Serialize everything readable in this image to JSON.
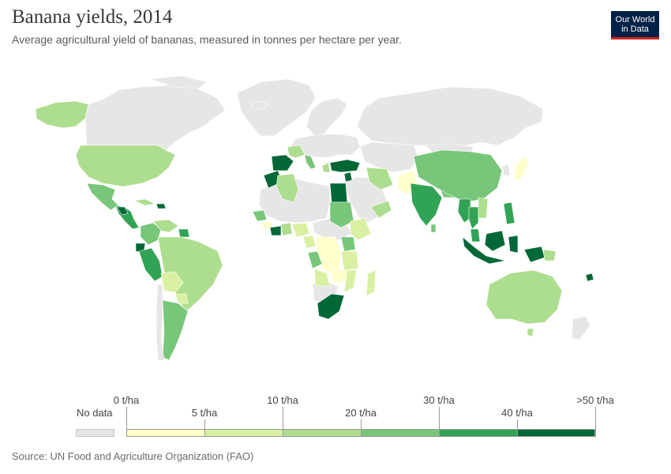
{
  "header": {
    "title": "Banana yields, 2014",
    "subtitle": "Average agricultural yield of bananas, measured in tonnes per hectare per year."
  },
  "logo": {
    "line1": "Our World",
    "line2": "in Data"
  },
  "legend": {
    "no_data_label": "No data",
    "tick_labels": [
      "0 t/ha",
      "5 t/ha",
      "10 t/ha",
      "20 t/ha",
      "30 t/ha",
      "40 t/ha",
      ">50 t/ha"
    ],
    "bin_colors": [
      "#ffffcc",
      "#d9f0a3",
      "#addd8e",
      "#78c679",
      "#31a354",
      "#006837"
    ],
    "no_data_color": "#e6e6e6"
  },
  "footer": {
    "source": "Source: UN Food and Agriculture Organization (FAO)"
  },
  "colors": {
    "no_data": "#e6e6e6",
    "b1": "#ffffcc",
    "b2": "#d9f0a3",
    "b3": "#addd8e",
    "b4": "#78c679",
    "b5": "#31a354",
    "b6": "#006837"
  }
}
